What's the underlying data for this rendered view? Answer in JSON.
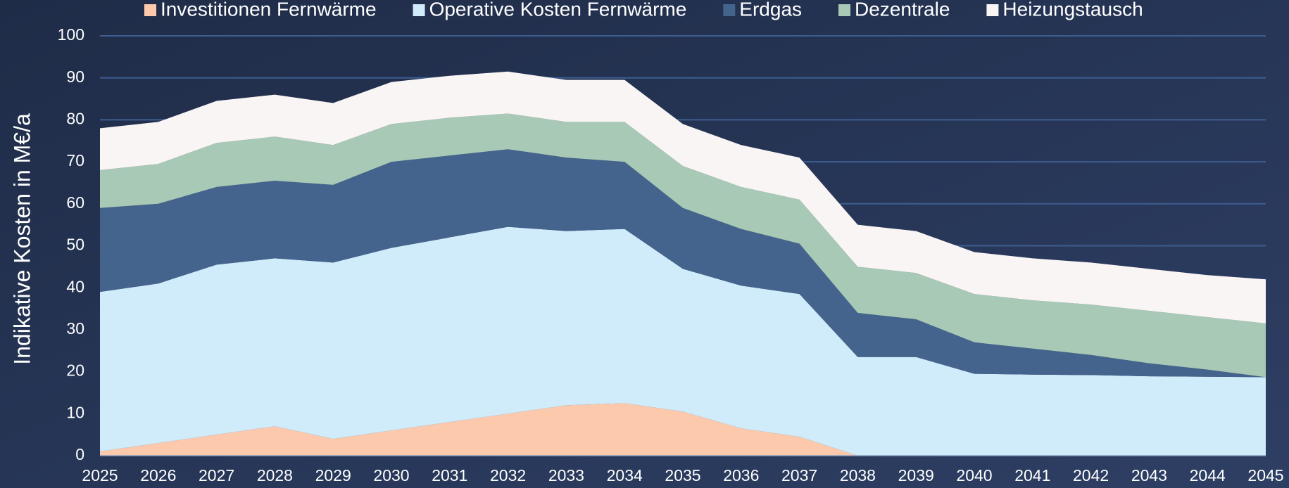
{
  "chart_data": {
    "type": "stacked_area",
    "y_label": "Indikative Kosten in M€/a",
    "categories": [
      "2025",
      "2026",
      "2027",
      "2028",
      "2029",
      "2030",
      "2031",
      "2032",
      "2033",
      "2034",
      "2035",
      "2036",
      "2037",
      "2038",
      "2039",
      "2040",
      "2041",
      "2042",
      "2043",
      "2044",
      "2045"
    ],
    "series": [
      {
        "name": "Investitionen Fernwärme",
        "color": "#fdc9ad",
        "values": [
          1,
          3,
          5,
          7,
          4,
          6,
          8,
          10,
          12,
          12.5,
          10.5,
          6.5,
          4.5,
          0,
          0,
          0,
          0,
          0,
          0,
          0,
          0
        ]
      },
      {
        "name": "Operative Kosten Fernwärme",
        "color": "#d0ebf9",
        "values": [
          38,
          38,
          40.5,
          40,
          42,
          43.5,
          44,
          44.5,
          41.5,
          41.5,
          34,
          34,
          34,
          23.5,
          23.5,
          19.5,
          19.3,
          19.2,
          18.9,
          18.8,
          18.7
        ]
      },
      {
        "name": "Erdgas",
        "color": "#44648e",
        "values": [
          20,
          19,
          18.5,
          18.5,
          18.5,
          20.5,
          19.5,
          18.5,
          17.5,
          16,
          14.5,
          13.5,
          12,
          10.5,
          9,
          7.5,
          6.2,
          4.8,
          3.1,
          1.7,
          0
        ]
      },
      {
        "name": "Dezentrale",
        "color": "#a8c9b5",
        "values": [
          9,
          9.5,
          10.5,
          10.5,
          9.5,
          9,
          9,
          8.5,
          8.5,
          9.5,
          10,
          10,
          10.5,
          11,
          11,
          11.5,
          11.5,
          12,
          12.5,
          12.5,
          12.8
        ]
      },
      {
        "name": "Heizungstausch",
        "color": "#faf5f5",
        "values": [
          10,
          10,
          10,
          10,
          10,
          10,
          10,
          10,
          10,
          10,
          10,
          10,
          10,
          10,
          10,
          10,
          10,
          10,
          10,
          10,
          10.5
        ]
      }
    ],
    "ylim": [
      0,
      100
    ],
    "yticks": [
      0,
      10,
      20,
      30,
      40,
      50,
      60,
      70,
      80,
      90,
      100
    ],
    "grid": true,
    "legend": "top"
  }
}
